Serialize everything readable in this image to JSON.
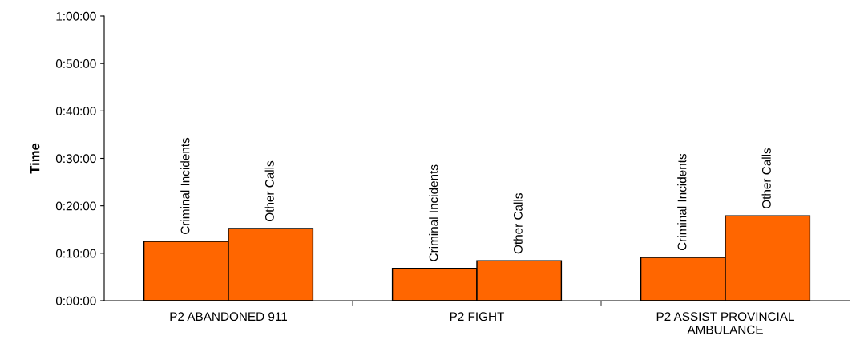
{
  "chart_data": {
    "type": "bar",
    "ylabel": "Time",
    "categories": [
      "P2 ABANDONED 911",
      "P2 FIGHT",
      "P2 ASSIST PROVINCIAL\nAMBULANCE"
    ],
    "series": [
      {
        "name": "Criminal Incidents",
        "color": "#ff6600",
        "values": [
          12.5,
          6.8,
          9.1
        ]
      },
      {
        "name": "Other Calls",
        "color": "#ff6600",
        "values": [
          15.2,
          8.4,
          17.9
        ]
      }
    ],
    "ylim": [
      0,
      60
    ],
    "yticks": [
      {
        "value": 0,
        "label": "0:00:00"
      },
      {
        "value": 10,
        "label": "0:10:00"
      },
      {
        "value": 20,
        "label": "0:20:00"
      },
      {
        "value": 30,
        "label": "0:30:00"
      },
      {
        "value": 40,
        "label": "0:40:00"
      },
      {
        "value": 50,
        "label": "0:50:00"
      },
      {
        "value": 60,
        "label": "1:00:00"
      }
    ],
    "grid": false,
    "legend": false
  }
}
